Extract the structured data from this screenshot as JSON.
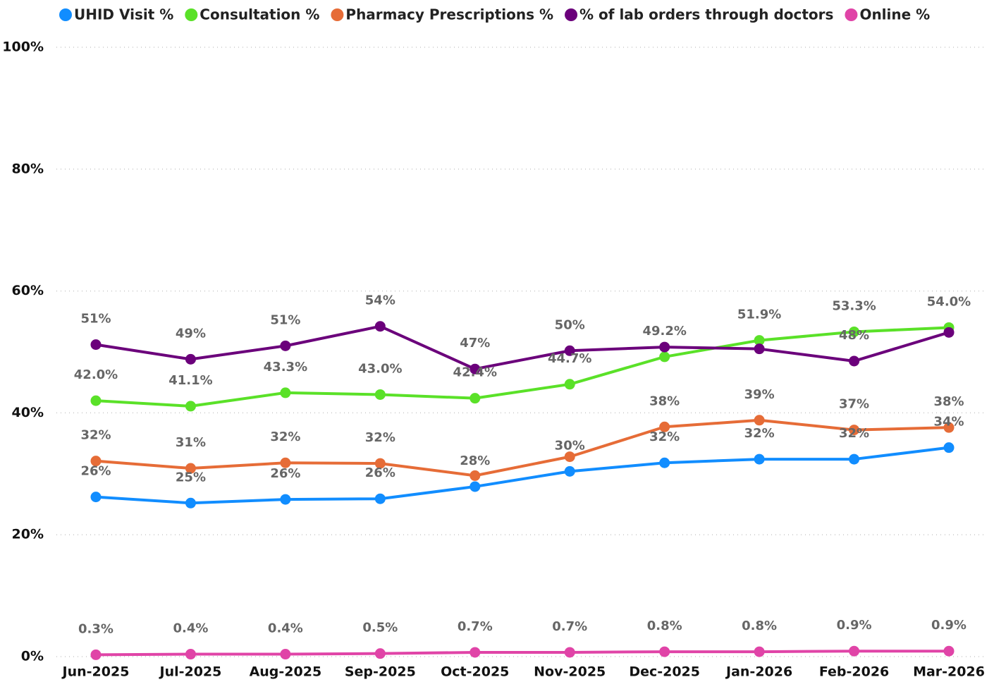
{
  "chart_data": {
    "type": "line",
    "categories": [
      "Jun-2025",
      "Jul-2025",
      "Aug-2025",
      "Sep-2025",
      "Oct-2025",
      "Nov-2025",
      "Dec-2025",
      "Jan-2026",
      "Feb-2026",
      "Mar-2026"
    ],
    "series": [
      {
        "name": "UHID Visit %",
        "color": "#118DFF",
        "values": [
          26.2,
          25.2,
          25.8,
          25.9,
          27.9,
          30.4,
          31.8,
          32.4,
          32.4,
          34.3
        ],
        "value_labels": [
          "26%",
          "25%",
          "26%",
          "26%",
          "28%",
          "30%",
          "32%",
          "32%",
          "32%",
          "34%"
        ]
      },
      {
        "name": "Consultation %",
        "color": "#5AE128",
        "values": [
          42.0,
          41.1,
          43.3,
          43.0,
          42.4,
          44.7,
          49.2,
          51.9,
          53.3,
          54.0
        ],
        "value_labels": [
          "42.0%",
          "41.1%",
          "43.3%",
          "43.0%",
          "42.4%",
          "44.7%",
          "49.2%",
          "51.9%",
          "53.3%",
          "54.0%"
        ]
      },
      {
        "name": "Pharmacy Prescriptions %",
        "color": "#E66C37",
        "values": [
          32.1,
          30.9,
          31.8,
          31.7,
          29.7,
          32.8,
          37.7,
          38.8,
          37.2,
          37.6
        ],
        "value_labels": [
          "32%",
          "31%",
          "32%",
          "32%",
          null,
          null,
          "38%",
          "39%",
          "37%",
          "38%"
        ]
      },
      {
        "name": "% of lab orders through doctors",
        "color": "#6B007B",
        "values": [
          51.2,
          48.8,
          51.0,
          54.2,
          47.2,
          50.2,
          50.8,
          50.5,
          48.5,
          53.2
        ],
        "value_labels": [
          "51%",
          "49%",
          "51%",
          "54%",
          "47%",
          "50%",
          null,
          null,
          "48%",
          null
        ]
      },
      {
        "name": "Online %",
        "color": "#E044A7",
        "values": [
          0.3,
          0.4,
          0.4,
          0.5,
          0.7,
          0.7,
          0.8,
          0.8,
          0.9,
          0.9
        ],
        "value_labels": [
          "0.3%",
          "0.4%",
          "0.4%",
          "0.5%",
          "0.7%",
          "0.7%",
          "0.8%",
          "0.8%",
          "0.9%",
          "0.9%"
        ]
      }
    ],
    "ylim": [
      0,
      100
    ],
    "yticks": [
      {
        "value": 0,
        "label": "0%"
      },
      {
        "value": 20,
        "label": "20%"
      },
      {
        "value": 40,
        "label": "40%"
      },
      {
        "value": 60,
        "label": "60%"
      },
      {
        "value": 80,
        "label": "80%"
      },
      {
        "value": 100,
        "label": "100%"
      }
    ],
    "grid": true,
    "legend": "top"
  }
}
